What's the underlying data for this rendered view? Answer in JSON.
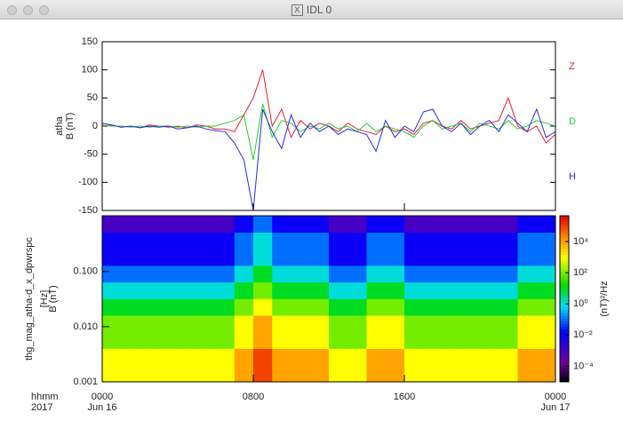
{
  "window": {
    "title": "IDL 0"
  },
  "chart_data": [
    {
      "type": "line",
      "ylabel": [
        "atha",
        "B (nT)"
      ],
      "x": [
        0,
        0.5,
        1,
        1.5,
        2,
        2.5,
        3,
        3.5,
        4,
        4.5,
        5,
        5.5,
        6,
        6.5,
        7,
        7.5,
        8,
        8.5,
        9,
        9.5,
        10,
        10.5,
        11,
        11.5,
        12,
        12.5,
        13,
        13.5,
        14,
        14.5,
        15,
        15.5,
        16,
        16.5,
        17,
        17.5,
        18,
        18.5,
        19,
        19.5,
        20,
        20.5,
        21,
        21.5,
        22,
        22.5,
        23,
        23.5,
        24
      ],
      "xlim": [
        0,
        24
      ],
      "ylim": [
        -150,
        150
      ],
      "yticks": [
        -150,
        -100,
        -50,
        0,
        50,
        100,
        150
      ],
      "series": [
        {
          "name": "Z",
          "color": "#e8202a",
          "values": [
            0,
            2,
            -2,
            0,
            -3,
            2,
            0,
            -2,
            0,
            -3,
            2,
            0,
            -5,
            -5,
            -10,
            20,
            50,
            100,
            0,
            30,
            -20,
            10,
            -5,
            5,
            0,
            -10,
            5,
            -5,
            -10,
            -15,
            0,
            -10,
            -5,
            -15,
            5,
            10,
            0,
            -5,
            10,
            -5,
            0,
            5,
            10,
            50,
            0,
            -10,
            0,
            -30,
            -15
          ]
        },
        {
          "name": "D",
          "color": "#22d12a",
          "values": [
            2,
            0,
            0,
            -2,
            0,
            -2,
            0,
            0,
            -2,
            0,
            -2,
            0,
            0,
            5,
            10,
            20,
            -60,
            40,
            -20,
            10,
            5,
            -10,
            0,
            -5,
            5,
            -5,
            0,
            -10,
            5,
            -10,
            0,
            -5,
            -10,
            -20,
            0,
            10,
            -5,
            0,
            5,
            -10,
            5,
            0,
            -5,
            10,
            -5,
            0,
            10,
            5,
            0
          ]
        },
        {
          "name": "H",
          "color": "#2a2ae8",
          "values": [
            5,
            2,
            -2,
            0,
            -3,
            0,
            -2,
            0,
            -5,
            -3,
            0,
            -5,
            -8,
            -10,
            -30,
            -60,
            -150,
            30,
            -10,
            -40,
            20,
            -20,
            5,
            -10,
            0,
            -15,
            -5,
            -10,
            -15,
            -45,
            10,
            -20,
            0,
            -10,
            25,
            30,
            0,
            -10,
            5,
            -15,
            0,
            10,
            -10,
            20,
            5,
            -10,
            30,
            -20,
            -10
          ]
        }
      ]
    },
    {
      "type": "heatmap",
      "ylabel": [
        "thg_mag_atha-d_x_dpwrspc",
        "[Hz]",
        "B (nT)"
      ],
      "xlabel": [
        "hhmm",
        "2017"
      ],
      "xbins": [
        0,
        1,
        2,
        3,
        4,
        5,
        6,
        7,
        8,
        9,
        10,
        11,
        12,
        13,
        14,
        15,
        16,
        17,
        18,
        19,
        20,
        21,
        22,
        23,
        24
      ],
      "xlim": [
        0,
        24
      ],
      "xticks": [
        {
          "value": 0,
          "label": "0000"
        },
        {
          "value": 8,
          "label": "0800"
        },
        {
          "value": 16,
          "label": "1600"
        },
        {
          "value": 24,
          "label": "0000"
        }
      ],
      "xtick_sublabels": [
        "Jun 16",
        null,
        null,
        "Jun 17"
      ],
      "ybins": [
        0.001,
        0.002,
        0.004,
        0.008,
        0.016,
        0.032,
        0.064,
        0.128,
        0.256,
        0.512,
        1.024
      ],
      "ylim": [
        0.001,
        1.024
      ],
      "ylog": true,
      "yticks": [
        {
          "value": 0.001,
          "label": "0.001"
        },
        {
          "value": 0.01,
          "label": "0.010"
        },
        {
          "value": 0.1,
          "label": "0.100"
        }
      ],
      "z": [
        [
          1000.0,
          1000.0,
          1000.0,
          1000.0,
          1000.0,
          1000.0,
          1000.0,
          10000.0,
          100000.0,
          10000.0,
          10000.0,
          10000.0,
          1000.0,
          1000.0,
          10000.0,
          10000.0,
          1000.0,
          1000.0,
          1000.0,
          1000.0,
          1000.0,
          1000.0,
          10000.0,
          10000.0
        ],
        [
          1000.0,
          1000.0,
          1000.0,
          1000.0,
          1000.0,
          1000.0,
          1000.0,
          10000.0,
          100000.0,
          10000.0,
          10000.0,
          10000.0,
          1000.0,
          1000.0,
          10000.0,
          10000.0,
          1000.0,
          1000.0,
          1000.0,
          1000.0,
          1000.0,
          1000.0,
          10000.0,
          10000.0
        ],
        [
          100.0,
          100.0,
          100.0,
          100.0,
          100.0,
          100.0,
          100.0,
          1000.0,
          10000.0,
          1000.0,
          1000.0,
          1000.0,
          100.0,
          100.0,
          1000.0,
          1000.0,
          100.0,
          100.0,
          100.0,
          100.0,
          100.0,
          100.0,
          1000.0,
          1000.0
        ],
        [
          100.0,
          100.0,
          100.0,
          100.0,
          100.0,
          100.0,
          100.0,
          1000.0,
          10000.0,
          1000.0,
          1000.0,
          1000.0,
          100.0,
          100.0,
          1000.0,
          1000.0,
          100.0,
          100.0,
          100.0,
          100.0,
          100.0,
          100.0,
          1000.0,
          1000.0
        ],
        [
          10.0,
          10.0,
          10.0,
          10.0,
          10.0,
          10.0,
          10.0,
          100.0,
          1000.0,
          100.0,
          100.0,
          100.0,
          10.0,
          10.0,
          100.0,
          100.0,
          10.0,
          10.0,
          10.0,
          10.0,
          10.0,
          10.0,
          100.0,
          100.0
        ],
        [
          1,
          1,
          1,
          1,
          1,
          1,
          1,
          10.0,
          100.0,
          10.0,
          10.0,
          10.0,
          1,
          1,
          10.0,
          10.0,
          1,
          1,
          1,
          1,
          1,
          1,
          10.0,
          10.0
        ],
        [
          0.1,
          0.1,
          0.1,
          0.1,
          0.1,
          0.1,
          0.1,
          1,
          10.0,
          1,
          1,
          1,
          0.1,
          0.1,
          1,
          1,
          0.1,
          0.1,
          0.1,
          0.1,
          0.1,
          0.1,
          1,
          1
        ],
        [
          0.01,
          0.01,
          0.01,
          0.01,
          0.01,
          0.01,
          0.01,
          0.1,
          1,
          0.1,
          0.1,
          0.1,
          0.01,
          0.01,
          0.1,
          0.1,
          0.01,
          0.01,
          0.01,
          0.01,
          0.01,
          0.01,
          0.1,
          0.1
        ],
        [
          0.01,
          0.01,
          0.01,
          0.01,
          0.01,
          0.01,
          0.01,
          0.1,
          1,
          0.1,
          0.1,
          0.1,
          0.01,
          0.01,
          0.1,
          0.1,
          0.01,
          0.01,
          0.01,
          0.01,
          0.01,
          0.01,
          0.1,
          0.1
        ],
        [
          0.001,
          0.001,
          0.001,
          0.001,
          0.001,
          0.001,
          0.001,
          0.01,
          0.1,
          0.01,
          0.01,
          0.01,
          0.001,
          0.001,
          0.01,
          0.01,
          0.001,
          0.001,
          0.001,
          0.001,
          0.001,
          0.001,
          0.01,
          0.01
        ]
      ],
      "colormap": "rainbow",
      "zlim": [
        1e-05,
        450000.0
      ],
      "zlog": true,
      "zlabel": "(nT)²/Hz",
      "zticks": [
        {
          "value": 0.0001,
          "label": "10⁻⁴"
        },
        {
          "value": 0.01,
          "label": "10⁻²"
        },
        {
          "value": 1,
          "label": "10⁰"
        },
        {
          "value": 100,
          "label": "10²"
        },
        {
          "value": 10000,
          "label": "10⁴"
        }
      ]
    }
  ]
}
